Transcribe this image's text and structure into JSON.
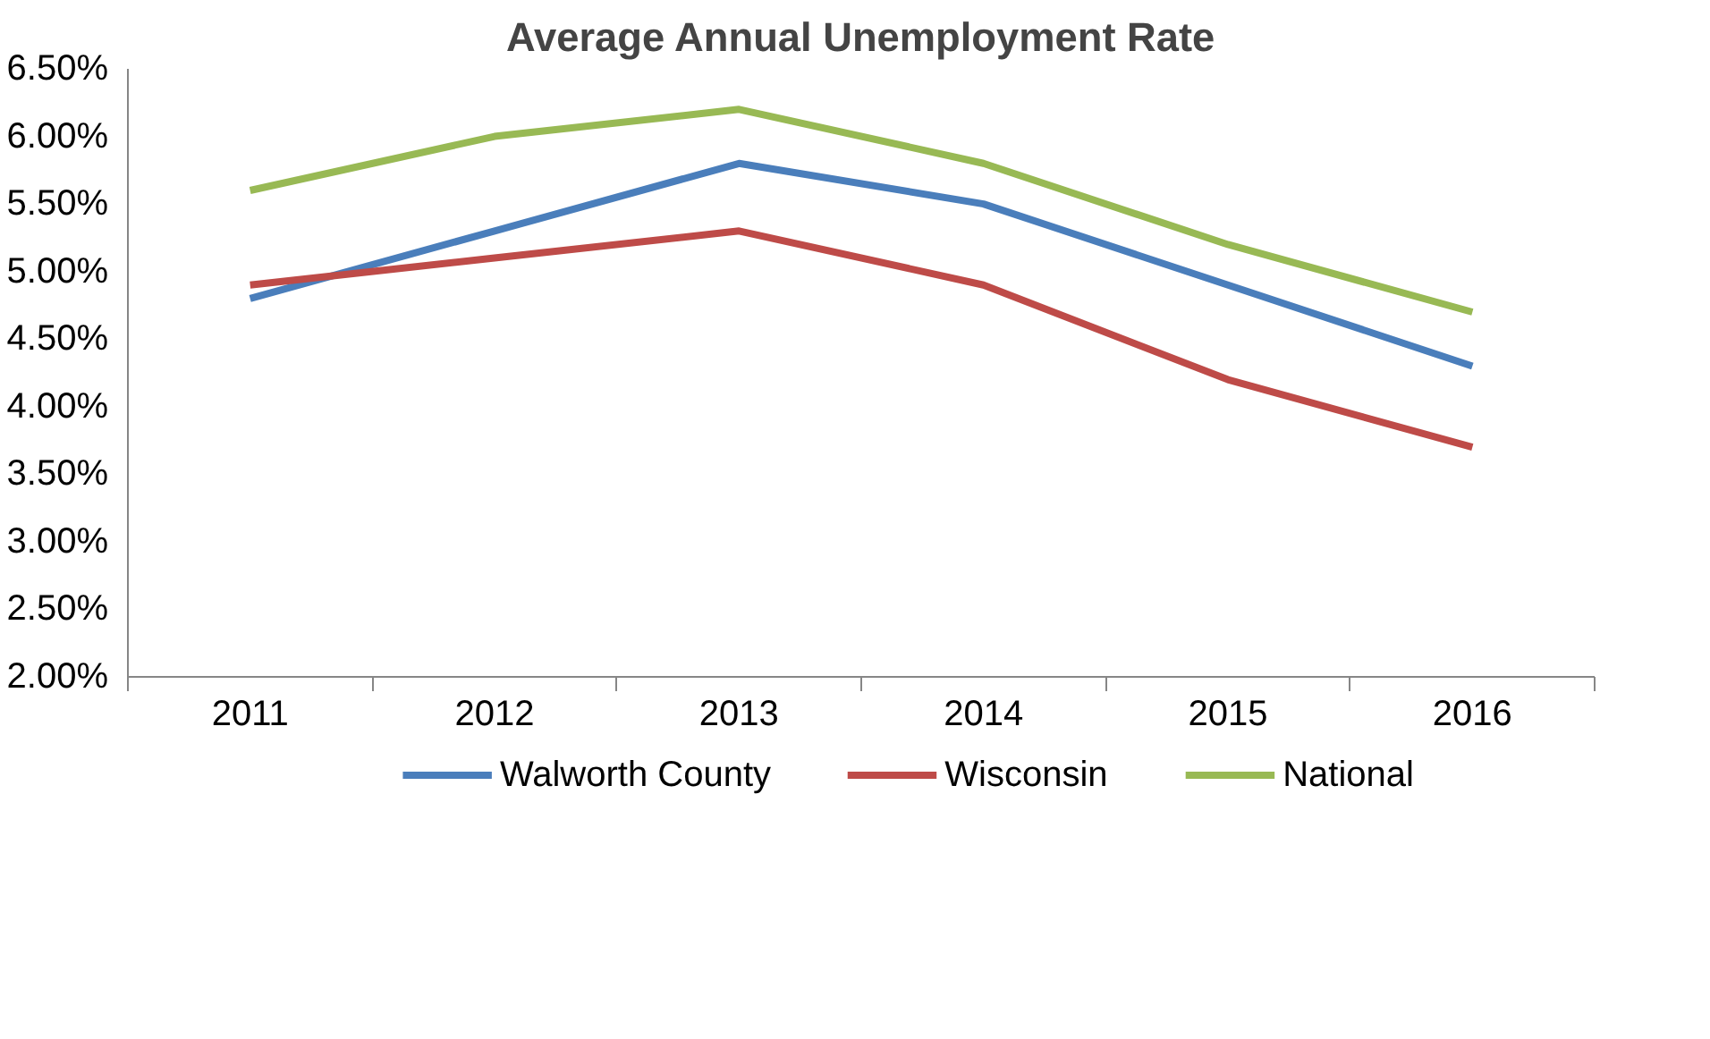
{
  "chart_data": {
    "type": "line",
    "title": "Average Annual Unemployment Rate",
    "categories": [
      "2011",
      "2012",
      "2013",
      "2014",
      "2015",
      "2016"
    ],
    "series": [
      {
        "name": "Walworth County",
        "color": "#4a7ebb",
        "values": [
          4.8,
          5.3,
          5.8,
          5.5,
          4.9,
          4.3
        ]
      },
      {
        "name": "Wisconsin",
        "color": "#be4b48",
        "values": [
          4.9,
          5.1,
          5.3,
          4.9,
          4.2,
          3.7
        ]
      },
      {
        "name": "National",
        "color": "#98b954",
        "values": [
          5.6,
          6.0,
          6.2,
          5.8,
          5.2,
          4.7
        ]
      }
    ],
    "ylim": [
      2,
      6.5
    ],
    "yticks": [
      {
        "value": 2,
        "label": "2.00%"
      },
      {
        "value": 2.5,
        "label": "2.50%"
      },
      {
        "value": 3,
        "label": "3.00%"
      },
      {
        "value": 3.5,
        "label": "3.50%"
      },
      {
        "value": 4,
        "label": "4.00%"
      },
      {
        "value": 4.5,
        "label": "4.50%"
      },
      {
        "value": 5,
        "label": "5.00%"
      },
      {
        "value": 5.5,
        "label": "5.50%"
      },
      {
        "value": 6,
        "label": "6.00%"
      },
      {
        "value": 6.5,
        "label": "6.50%"
      }
    ],
    "grid": false,
    "legend": "bottom",
    "marker": "none",
    "line_style": "solid"
  }
}
